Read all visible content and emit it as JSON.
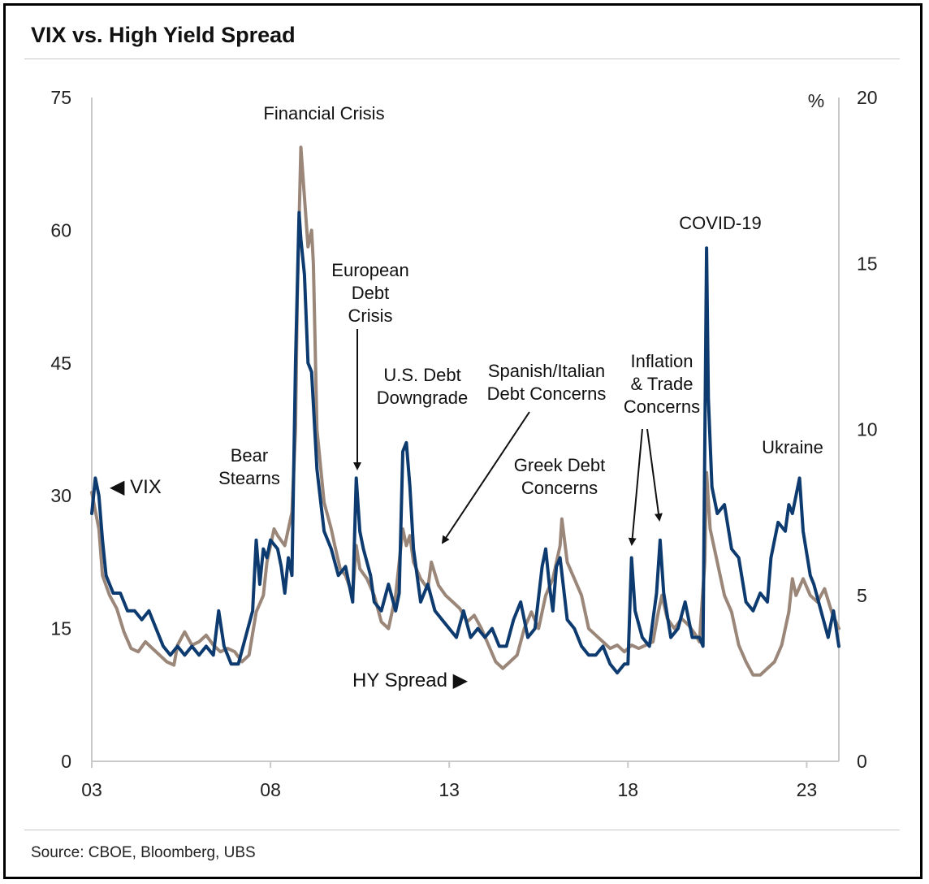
{
  "title": "VIX vs. High Yield Spread",
  "source": "Source: CBOE, Bloomberg, UBS",
  "chart_data": {
    "type": "line",
    "x_ticks": [
      "03",
      "08",
      "13",
      "18",
      "23"
    ],
    "x_tick_values": [
      2003,
      2008,
      2013,
      2018,
      2023
    ],
    "xlim": [
      2003,
      2023.9
    ],
    "y_left": {
      "ticks": [
        "0",
        "15",
        "30",
        "45",
        "60",
        "75"
      ],
      "tick_values": [
        0,
        15,
        30,
        45,
        60,
        75
      ],
      "ylim": [
        0,
        75
      ]
    },
    "y_right": {
      "unit": "%",
      "ticks": [
        "0",
        "5",
        "10",
        "15",
        "20"
      ],
      "tick_values": [
        0,
        5,
        10,
        15,
        20
      ],
      "ylim": [
        0,
        20
      ]
    },
    "grid": false,
    "series": [
      {
        "name": "VIX",
        "label": "◀ VIX",
        "axis": "left",
        "color": "#0d3b70",
        "points": [
          [
            2003.0,
            28
          ],
          [
            2003.1,
            32
          ],
          [
            2003.2,
            30
          ],
          [
            2003.3,
            25
          ],
          [
            2003.4,
            21
          ],
          [
            2003.6,
            19
          ],
          [
            2003.8,
            19
          ],
          [
            2004.0,
            17
          ],
          [
            2004.2,
            17
          ],
          [
            2004.4,
            16
          ],
          [
            2004.6,
            17
          ],
          [
            2004.8,
            15
          ],
          [
            2005.0,
            13
          ],
          [
            2005.2,
            12
          ],
          [
            2005.4,
            13
          ],
          [
            2005.6,
            12
          ],
          [
            2005.8,
            13
          ],
          [
            2006.0,
            12
          ],
          [
            2006.2,
            13
          ],
          [
            2006.4,
            12
          ],
          [
            2006.55,
            17
          ],
          [
            2006.7,
            13
          ],
          [
            2006.9,
            11
          ],
          [
            2007.1,
            11
          ],
          [
            2007.3,
            14
          ],
          [
            2007.5,
            17
          ],
          [
            2007.6,
            25
          ],
          [
            2007.7,
            20
          ],
          [
            2007.8,
            24
          ],
          [
            2007.9,
            23
          ],
          [
            2008.0,
            25
          ],
          [
            2008.2,
            24
          ],
          [
            2008.3,
            22
          ],
          [
            2008.4,
            19
          ],
          [
            2008.5,
            23
          ],
          [
            2008.6,
            21
          ],
          [
            2008.7,
            45
          ],
          [
            2008.8,
            62
          ],
          [
            2008.85,
            59
          ],
          [
            2008.95,
            55
          ],
          [
            2009.05,
            45
          ],
          [
            2009.15,
            44
          ],
          [
            2009.3,
            33
          ],
          [
            2009.5,
            26
          ],
          [
            2009.7,
            24
          ],
          [
            2009.9,
            21
          ],
          [
            2010.1,
            22
          ],
          [
            2010.3,
            18
          ],
          [
            2010.4,
            32
          ],
          [
            2010.5,
            26
          ],
          [
            2010.6,
            24
          ],
          [
            2010.8,
            21
          ],
          [
            2010.9,
            18
          ],
          [
            2011.1,
            17
          ],
          [
            2011.3,
            20
          ],
          [
            2011.5,
            17
          ],
          [
            2011.6,
            19
          ],
          [
            2011.7,
            35
          ],
          [
            2011.8,
            36
          ],
          [
            2011.9,
            31
          ],
          [
            2012.0,
            24
          ],
          [
            2012.2,
            18
          ],
          [
            2012.4,
            20
          ],
          [
            2012.6,
            17
          ],
          [
            2012.8,
            16
          ],
          [
            2013.0,
            15
          ],
          [
            2013.2,
            14
          ],
          [
            2013.4,
            17
          ],
          [
            2013.6,
            14
          ],
          [
            2013.8,
            15
          ],
          [
            2014.0,
            14
          ],
          [
            2014.2,
            15
          ],
          [
            2014.4,
            13
          ],
          [
            2014.6,
            13
          ],
          [
            2014.8,
            16
          ],
          [
            2015.0,
            18
          ],
          [
            2015.2,
            14
          ],
          [
            2015.4,
            15
          ],
          [
            2015.6,
            22
          ],
          [
            2015.7,
            24
          ],
          [
            2015.8,
            20
          ],
          [
            2015.9,
            17
          ],
          [
            2016.0,
            22
          ],
          [
            2016.1,
            23
          ],
          [
            2016.3,
            16
          ],
          [
            2016.5,
            15
          ],
          [
            2016.7,
            13
          ],
          [
            2016.9,
            12
          ],
          [
            2017.1,
            12
          ],
          [
            2017.3,
            13
          ],
          [
            2017.5,
            11
          ],
          [
            2017.7,
            10
          ],
          [
            2017.9,
            11
          ],
          [
            2018.0,
            11
          ],
          [
            2018.1,
            23
          ],
          [
            2018.2,
            17
          ],
          [
            2018.4,
            14
          ],
          [
            2018.6,
            13
          ],
          [
            2018.8,
            19
          ],
          [
            2018.9,
            25
          ],
          [
            2019.0,
            19
          ],
          [
            2019.2,
            14
          ],
          [
            2019.4,
            15
          ],
          [
            2019.6,
            18
          ],
          [
            2019.8,
            14
          ],
          [
            2020.0,
            14
          ],
          [
            2020.1,
            13
          ],
          [
            2020.2,
            58
          ],
          [
            2020.25,
            41
          ],
          [
            2020.35,
            31
          ],
          [
            2020.5,
            28
          ],
          [
            2020.7,
            29
          ],
          [
            2020.9,
            24
          ],
          [
            2021.1,
            23
          ],
          [
            2021.3,
            18
          ],
          [
            2021.5,
            17
          ],
          [
            2021.7,
            19
          ],
          [
            2021.9,
            18
          ],
          [
            2022.0,
            23
          ],
          [
            2022.2,
            27
          ],
          [
            2022.4,
            26
          ],
          [
            2022.5,
            29
          ],
          [
            2022.6,
            28
          ],
          [
            2022.8,
            32
          ],
          [
            2022.9,
            26
          ],
          [
            2023.1,
            21
          ],
          [
            2023.2,
            20
          ],
          [
            2023.4,
            17
          ],
          [
            2023.6,
            14
          ],
          [
            2023.75,
            17
          ],
          [
            2023.9,
            13
          ]
        ]
      },
      {
        "name": "HY Spread",
        "label": "HY Spread ▶",
        "axis": "right",
        "color": "#9b877a",
        "points": [
          [
            2003.0,
            8.1
          ],
          [
            2003.2,
            7.0
          ],
          [
            2003.3,
            5.6
          ],
          [
            2003.5,
            5.0
          ],
          [
            2003.7,
            4.6
          ],
          [
            2003.9,
            3.9
          ],
          [
            2004.1,
            3.4
          ],
          [
            2004.3,
            3.3
          ],
          [
            2004.5,
            3.6
          ],
          [
            2004.7,
            3.4
          ],
          [
            2004.9,
            3.2
          ],
          [
            2005.1,
            3.0
          ],
          [
            2005.3,
            2.9
          ],
          [
            2005.4,
            3.5
          ],
          [
            2005.6,
            3.9
          ],
          [
            2005.8,
            3.5
          ],
          [
            2006.0,
            3.6
          ],
          [
            2006.2,
            3.8
          ],
          [
            2006.4,
            3.5
          ],
          [
            2006.6,
            3.3
          ],
          [
            2006.8,
            3.4
          ],
          [
            2007.0,
            3.3
          ],
          [
            2007.2,
            3.0
          ],
          [
            2007.4,
            3.2
          ],
          [
            2007.6,
            4.5
          ],
          [
            2007.8,
            5.0
          ],
          [
            2007.9,
            6.0
          ],
          [
            2008.0,
            6.5
          ],
          [
            2008.1,
            7.0
          ],
          [
            2008.2,
            6.8
          ],
          [
            2008.4,
            6.5
          ],
          [
            2008.6,
            7.5
          ],
          [
            2008.7,
            10.0
          ],
          [
            2008.75,
            14.0
          ],
          [
            2008.85,
            18.5
          ],
          [
            2008.95,
            17.0
          ],
          [
            2009.05,
            15.5
          ],
          [
            2009.15,
            16.0
          ],
          [
            2009.2,
            15.0
          ],
          [
            2009.3,
            10.0
          ],
          [
            2009.5,
            7.8
          ],
          [
            2009.7,
            7.0
          ],
          [
            2009.8,
            6.5
          ],
          [
            2009.95,
            5.8
          ],
          [
            2010.1,
            5.6
          ],
          [
            2010.3,
            5.0
          ],
          [
            2010.4,
            6.5
          ],
          [
            2010.5,
            5.8
          ],
          [
            2010.7,
            5.5
          ],
          [
            2010.9,
            5.0
          ],
          [
            2011.1,
            4.2
          ],
          [
            2011.3,
            4.0
          ],
          [
            2011.5,
            5.0
          ],
          [
            2011.7,
            7.0
          ],
          [
            2011.8,
            6.5
          ],
          [
            2011.9,
            6.8
          ],
          [
            2012.0,
            6.0
          ],
          [
            2012.2,
            5.5
          ],
          [
            2012.4,
            5.2
          ],
          [
            2012.5,
            6.0
          ],
          [
            2012.7,
            5.3
          ],
          [
            2012.9,
            5.0
          ],
          [
            2013.1,
            4.8
          ],
          [
            2013.3,
            4.6
          ],
          [
            2013.5,
            4.2
          ],
          [
            2013.7,
            4.4
          ],
          [
            2013.9,
            4.0
          ],
          [
            2014.1,
            3.5
          ],
          [
            2014.3,
            3.0
          ],
          [
            2014.5,
            2.8
          ],
          [
            2014.7,
            3.0
          ],
          [
            2014.9,
            3.2
          ],
          [
            2015.1,
            4.0
          ],
          [
            2015.3,
            4.5
          ],
          [
            2015.5,
            4.0
          ],
          [
            2015.7,
            5.0
          ],
          [
            2015.9,
            5.5
          ],
          [
            2016.1,
            6.5
          ],
          [
            2016.15,
            7.3
          ],
          [
            2016.3,
            6.0
          ],
          [
            2016.5,
            5.5
          ],
          [
            2016.7,
            5.0
          ],
          [
            2016.9,
            4.0
          ],
          [
            2017.1,
            3.8
          ],
          [
            2017.3,
            3.6
          ],
          [
            2017.5,
            3.4
          ],
          [
            2017.7,
            3.5
          ],
          [
            2017.9,
            3.3
          ],
          [
            2018.1,
            3.5
          ],
          [
            2018.3,
            3.4
          ],
          [
            2018.5,
            3.5
          ],
          [
            2018.7,
            3.6
          ],
          [
            2018.85,
            4.5
          ],
          [
            2018.95,
            5.0
          ],
          [
            2019.1,
            4.3
          ],
          [
            2019.3,
            4.0
          ],
          [
            2019.5,
            4.3
          ],
          [
            2019.7,
            4.1
          ],
          [
            2019.9,
            3.8
          ],
          [
            2020.0,
            3.6
          ],
          [
            2020.15,
            6.0
          ],
          [
            2020.2,
            8.7
          ],
          [
            2020.3,
            7.0
          ],
          [
            2020.5,
            6.0
          ],
          [
            2020.7,
            5.0
          ],
          [
            2020.9,
            4.5
          ],
          [
            2021.1,
            3.5
          ],
          [
            2021.3,
            3.0
          ],
          [
            2021.5,
            2.6
          ],
          [
            2021.7,
            2.6
          ],
          [
            2021.9,
            2.8
          ],
          [
            2022.1,
            3.0
          ],
          [
            2022.3,
            3.5
          ],
          [
            2022.5,
            4.5
          ],
          [
            2022.6,
            5.5
          ],
          [
            2022.7,
            5.0
          ],
          [
            2022.9,
            5.5
          ],
          [
            2023.1,
            5.0
          ],
          [
            2023.3,
            4.8
          ],
          [
            2023.5,
            5.2
          ],
          [
            2023.7,
            4.5
          ],
          [
            2023.9,
            4.0
          ]
        ]
      }
    ],
    "annotations": [
      {
        "key": "financial",
        "lines": [
          "Financial Crisis"
        ]
      },
      {
        "key": "euro",
        "lines": [
          "European",
          "Debt",
          "Crisis"
        ]
      },
      {
        "key": "us",
        "lines": [
          "U.S. Debt",
          "Downgrade"
        ]
      },
      {
        "key": "spanish",
        "lines": [
          "Spanish/Italian",
          "Debt Concerns"
        ]
      },
      {
        "key": "inflation",
        "lines": [
          "Inflation",
          "& Trade",
          "Concerns"
        ]
      },
      {
        "key": "covid",
        "lines": [
          "COVID-19"
        ]
      },
      {
        "key": "bear",
        "lines": [
          "Bear",
          "Stearns"
        ]
      },
      {
        "key": "greek",
        "lines": [
          "Greek Debt",
          "Concerns"
        ]
      },
      {
        "key": "ukraine",
        "lines": [
          "Ukraine"
        ]
      }
    ]
  }
}
